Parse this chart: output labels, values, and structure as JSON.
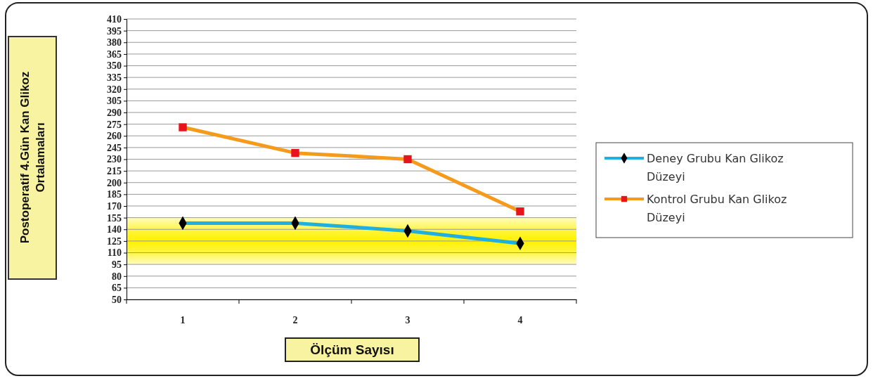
{
  "chart_data": {
    "type": "line",
    "xlabel": "Ölçüm Sayısı",
    "ylabel": "Postoperatif 4.Gün Kan Glikoz Ortalamaları",
    "categories": [
      "1",
      "2",
      "3",
      "4"
    ],
    "series": [
      {
        "name": "Deney Grubu Kan Glikoz Düzeyi",
        "color": "#1fb0e0",
        "marker": "diamond",
        "values": [
          148,
          148,
          138,
          122
        ]
      },
      {
        "name": "Kontrol Grubu Kan Glikoz Düzeyi",
        "color": "#f59a1b",
        "marker": "square",
        "values": [
          271,
          238,
          230,
          163
        ]
      }
    ],
    "ylim": [
      50,
      410
    ],
    "yticks": [
      50,
      65,
      80,
      95,
      110,
      125,
      140,
      155,
      170,
      185,
      200,
      215,
      230,
      245,
      260,
      275,
      290,
      305,
      320,
      335,
      350,
      365,
      380,
      395,
      410
    ],
    "bands": [
      {
        "axis": "y",
        "from": 95,
        "to": 155,
        "color": "#fff200"
      }
    ],
    "grid": "y",
    "legend": "right",
    "line_style": "solid"
  }
}
